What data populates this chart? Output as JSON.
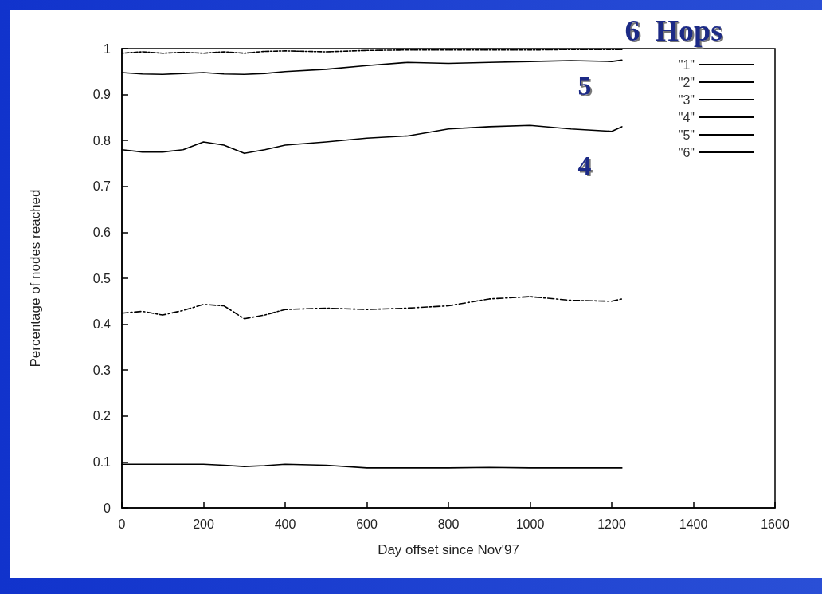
{
  "chart_data": {
    "type": "line",
    "title": "6  Hops",
    "xlabel": "Day offset since Nov'97",
    "ylabel": "Percentage of nodes reached",
    "x": [
      0,
      50,
      100,
      150,
      200,
      250,
      300,
      350,
      400,
      500,
      600,
      700,
      800,
      900,
      1000,
      1100,
      1200,
      1225
    ],
    "xlim": [
      0,
      1600
    ],
    "xticks": [
      0,
      200,
      400,
      600,
      800,
      1000,
      1200,
      1400,
      1600
    ],
    "ylim": [
      0,
      1
    ],
    "yticks": [
      0,
      0.1,
      0.2,
      0.3,
      0.4,
      0.5,
      0.6,
      0.7,
      0.8,
      0.9,
      1
    ],
    "grid": false,
    "legend": "top right",
    "marker": "none",
    "annotations": [
      "5",
      "4"
    ],
    "series": [
      {
        "name": "\"1\"",
        "color": "#000000",
        "line_style": "solid",
        "values": [
          null,
          null,
          null,
          null,
          null,
          null,
          null,
          null,
          null,
          null,
          null,
          null,
          null,
          null,
          null,
          null,
          null,
          null
        ]
      },
      {
        "name": "\"2\"",
        "color": "#000000",
        "line_style": "solid",
        "values": [
          0.095,
          0.095,
          0.095,
          0.095,
          0.095,
          0.093,
          0.09,
          0.092,
          0.095,
          0.093,
          0.087,
          0.087,
          0.087,
          0.088,
          0.087,
          0.087,
          0.087,
          0.087
        ]
      },
      {
        "name": "\"3\"",
        "color": "#000000",
        "line_style": "dashed",
        "values": [
          0.424,
          0.428,
          0.42,
          0.43,
          0.443,
          0.44,
          0.412,
          0.42,
          0.432,
          0.435,
          0.432,
          0.435,
          0.44,
          0.455,
          0.46,
          0.452,
          0.45,
          0.455
        ]
      },
      {
        "name": "\"4\"",
        "color": "#000000",
        "line_style": "solid",
        "values": [
          0.78,
          0.775,
          0.775,
          0.78,
          0.797,
          0.79,
          0.772,
          0.78,
          0.79,
          0.797,
          0.805,
          0.81,
          0.825,
          0.83,
          0.833,
          0.825,
          0.82,
          0.83
        ]
      },
      {
        "name": "\"5\"",
        "color": "#000000",
        "line_style": "solid",
        "values": [
          0.948,
          0.945,
          0.944,
          0.946,
          0.948,
          0.945,
          0.944,
          0.946,
          0.95,
          0.955,
          0.963,
          0.97,
          0.968,
          0.97,
          0.972,
          0.974,
          0.972,
          0.975
        ]
      },
      {
        "name": "\"6\"",
        "color": "#000000",
        "line_style": "dotted",
        "values": [
          0.99,
          0.993,
          0.99,
          0.992,
          0.99,
          0.993,
          0.99,
          0.994,
          0.995,
          0.993,
          0.996,
          0.997,
          0.997,
          0.997,
          0.997,
          0.998,
          0.998,
          0.998
        ]
      }
    ]
  }
}
